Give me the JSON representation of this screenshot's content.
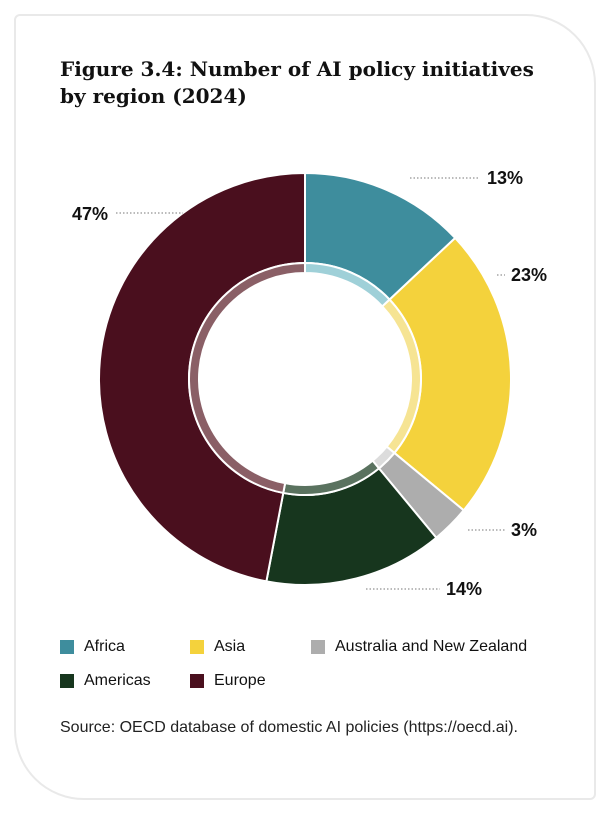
{
  "title": "Figure 3.4: Number of AI policy initiatives by region (2024)",
  "source": "Source: OECD database of domestic AI policies (https://oecd.ai).",
  "chart_data": {
    "type": "pie",
    "style": "donut",
    "title": "Figure 3.4: Number of AI policy initiatives by region (2024)",
    "categories": [
      "Africa",
      "Asia",
      "Australia and New Zealand",
      "Americas",
      "Europe"
    ],
    "values": [
      13,
      23,
      3,
      14,
      47
    ],
    "unit": "%",
    "data_labels": [
      "13%",
      "23%",
      "3%",
      "14%",
      "47%"
    ],
    "colors": [
      "#3e8d9d",
      "#f4d23c",
      "#adadad",
      "#17361e",
      "#4a0f1e"
    ],
    "inner_ring_colors": [
      "#9fd0d8",
      "#f6e493",
      "#dcdcdc",
      "#5a725f",
      "#8a5f66"
    ],
    "legend_position": "bottom"
  },
  "legend": [
    {
      "label": "Africa",
      "color": "#3e8d9d"
    },
    {
      "label": "Asia",
      "color": "#f4d23c"
    },
    {
      "label": "Australia and New Zealand",
      "color": "#adadad"
    },
    {
      "label": "Americas",
      "color": "#17361e"
    },
    {
      "label": "Europe",
      "color": "#4a0f1e"
    }
  ]
}
